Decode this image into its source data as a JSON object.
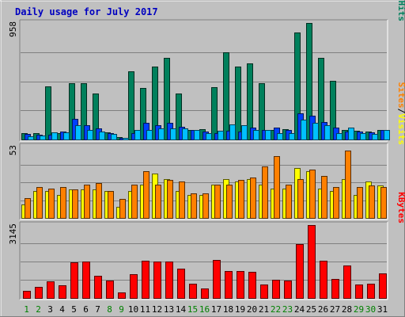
{
  "chart_data": {
    "type": "bar",
    "title": "Daily usage for July 2017",
    "categories": [
      "1",
      "2",
      "3",
      "4",
      "5",
      "6",
      "7",
      "8",
      "9",
      "10",
      "11",
      "12",
      "13",
      "14",
      "15",
      "16",
      "17",
      "18",
      "19",
      "20",
      "21",
      "22",
      "23",
      "24",
      "25",
      "26",
      "27",
      "28",
      "29",
      "30",
      "31"
    ],
    "weekend_days": [
      "1",
      "2",
      "8",
      "9",
      "15",
      "16",
      "22",
      "23",
      "29",
      "30"
    ],
    "grid": true,
    "colors": {
      "background": "#c0c0c0",
      "title": "#0000c0",
      "weekday_label": "#000000",
      "weekend_label": "#008000",
      "hits": "#00805c",
      "files": "#0040ff",
      "pages": "#00c0ff",
      "visits": "#ffff00",
      "sites": "#ff8000",
      "kbytes": "#ff0000"
    },
    "panels": [
      {
        "name": "hits-files-pages",
        "ymax_label": "958",
        "ymax": 958,
        "legend": [
          "Pages",
          "/",
          "Files",
          "/",
          "Hits"
        ],
        "series": [
          {
            "name": "Hits",
            "values": [
              50,
              50,
              437,
              50,
              460,
              465,
              375,
              60,
              20,
              560,
              425,
              598,
              668,
              375,
              80,
              85,
              432,
              720,
              600,
              627,
              465,
              75,
              85,
              880,
              958,
              668,
              480,
              80,
              70,
              65,
              80
            ]
          },
          {
            "name": "Files",
            "values": [
              45,
              40,
              40,
              65,
              170,
              120,
              90,
              55,
              15,
              55,
              135,
              120,
              140,
              105,
              75,
              65,
              55,
              70,
              65,
              95,
              75,
              95,
              80,
              215,
              195,
              145,
              95,
              65,
              65,
              60,
              80
            ]
          },
          {
            "name": "Pages",
            "values": [
              25,
              30,
              60,
              60,
              120,
              80,
              65,
              45,
              10,
              75,
              75,
              90,
              90,
              90,
              80,
              55,
              70,
              125,
              120,
              75,
              80,
              50,
              50,
              160,
              140,
              120,
              55,
              95,
              50,
              45,
              75
            ]
          }
        ]
      },
      {
        "name": "visits-sites",
        "ymax_label": "53",
        "ymax": 53,
        "legend": [
          "Sites",
          "/",
          "Visits"
        ],
        "series": [
          {
            "name": "Visits",
            "values": [
              10,
              20,
              20,
              17,
              21,
              21,
              21,
              20,
              8,
              20,
              25,
              33,
              29,
              20,
              17,
              17,
              25,
              29,
              27,
              29,
              25,
              22,
              22,
              37,
              35,
              22,
              20,
              29,
              17,
              27,
              24
            ]
          },
          {
            "name": "Sites",
            "values": [
              15,
              23,
              22,
              23,
              21,
              25,
              26,
              20,
              14,
              25,
              35,
              25,
              28,
              27,
              18,
              18,
              25,
              25,
              28,
              30,
              38,
              46,
              25,
              29,
              36,
              31,
              23,
              50,
              23,
              24,
              23
            ]
          }
        ]
      },
      {
        "name": "kbytes",
        "ymax_label": "3145",
        "ymax": 3145,
        "legend": [
          "KBytes"
        ],
        "series": [
          {
            "name": "KBytes",
            "values": [
              310,
              480,
              710,
              560,
              1525,
              1565,
              970,
              755,
              250,
              1030,
              1620,
              1570,
              1570,
              1265,
              600,
              400,
              1630,
              1170,
              1165,
              1135,
              580,
              770,
              750,
              2335,
              3145,
              1610,
              830,
              1415,
              575,
              615,
              1050
            ]
          }
        ]
      }
    ]
  }
}
